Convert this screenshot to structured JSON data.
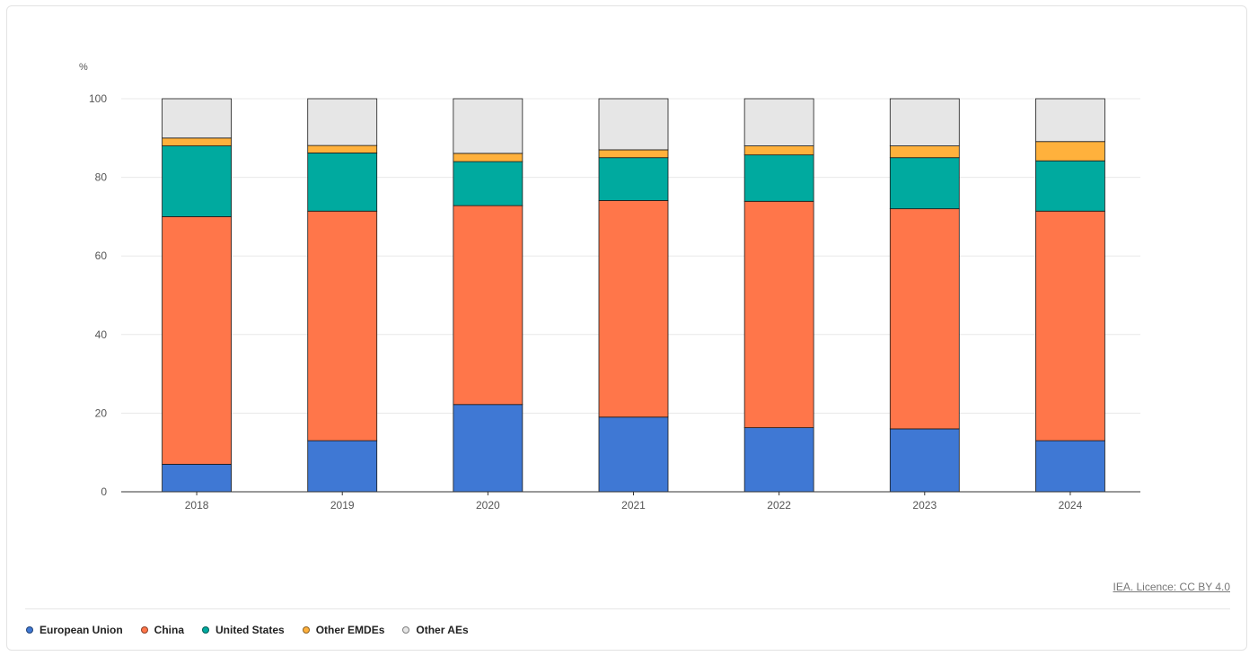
{
  "chart_data": {
    "type": "bar",
    "stacked": true,
    "ylabel": "%",
    "ylim": [
      0,
      100
    ],
    "yticks": [
      0,
      20,
      40,
      60,
      80,
      100
    ],
    "categories": [
      "2018",
      "2019",
      "2020",
      "2021",
      "2022",
      "2023",
      "2024"
    ],
    "series": [
      {
        "name": "European Union",
        "color": "#3f78d4",
        "values": [
          7,
          13,
          22.2,
          19,
          16.3,
          16,
          13
        ]
      },
      {
        "name": "China",
        "color": "#ff764a",
        "values": [
          63,
          58.4,
          50.6,
          55.1,
          57.6,
          56,
          58.4
        ]
      },
      {
        "name": "United States",
        "color": "#00aa9f",
        "values": [
          18,
          14.8,
          11.2,
          10.9,
          11.8,
          13,
          12.8
        ]
      },
      {
        "name": "Other EMDEs",
        "color": "#ffb13c",
        "values": [
          2,
          1.9,
          2.1,
          2,
          2.3,
          3,
          4.9
        ]
      },
      {
        "name": "Other AEs",
        "color": "#e6e6e6",
        "values": [
          10,
          11.9,
          13.9,
          13,
          12,
          12,
          10.9
        ]
      }
    ],
    "grid": true,
    "legend": "bottom-left"
  },
  "footer": {
    "licence": "IEA. Licence: CC BY 4.0"
  }
}
